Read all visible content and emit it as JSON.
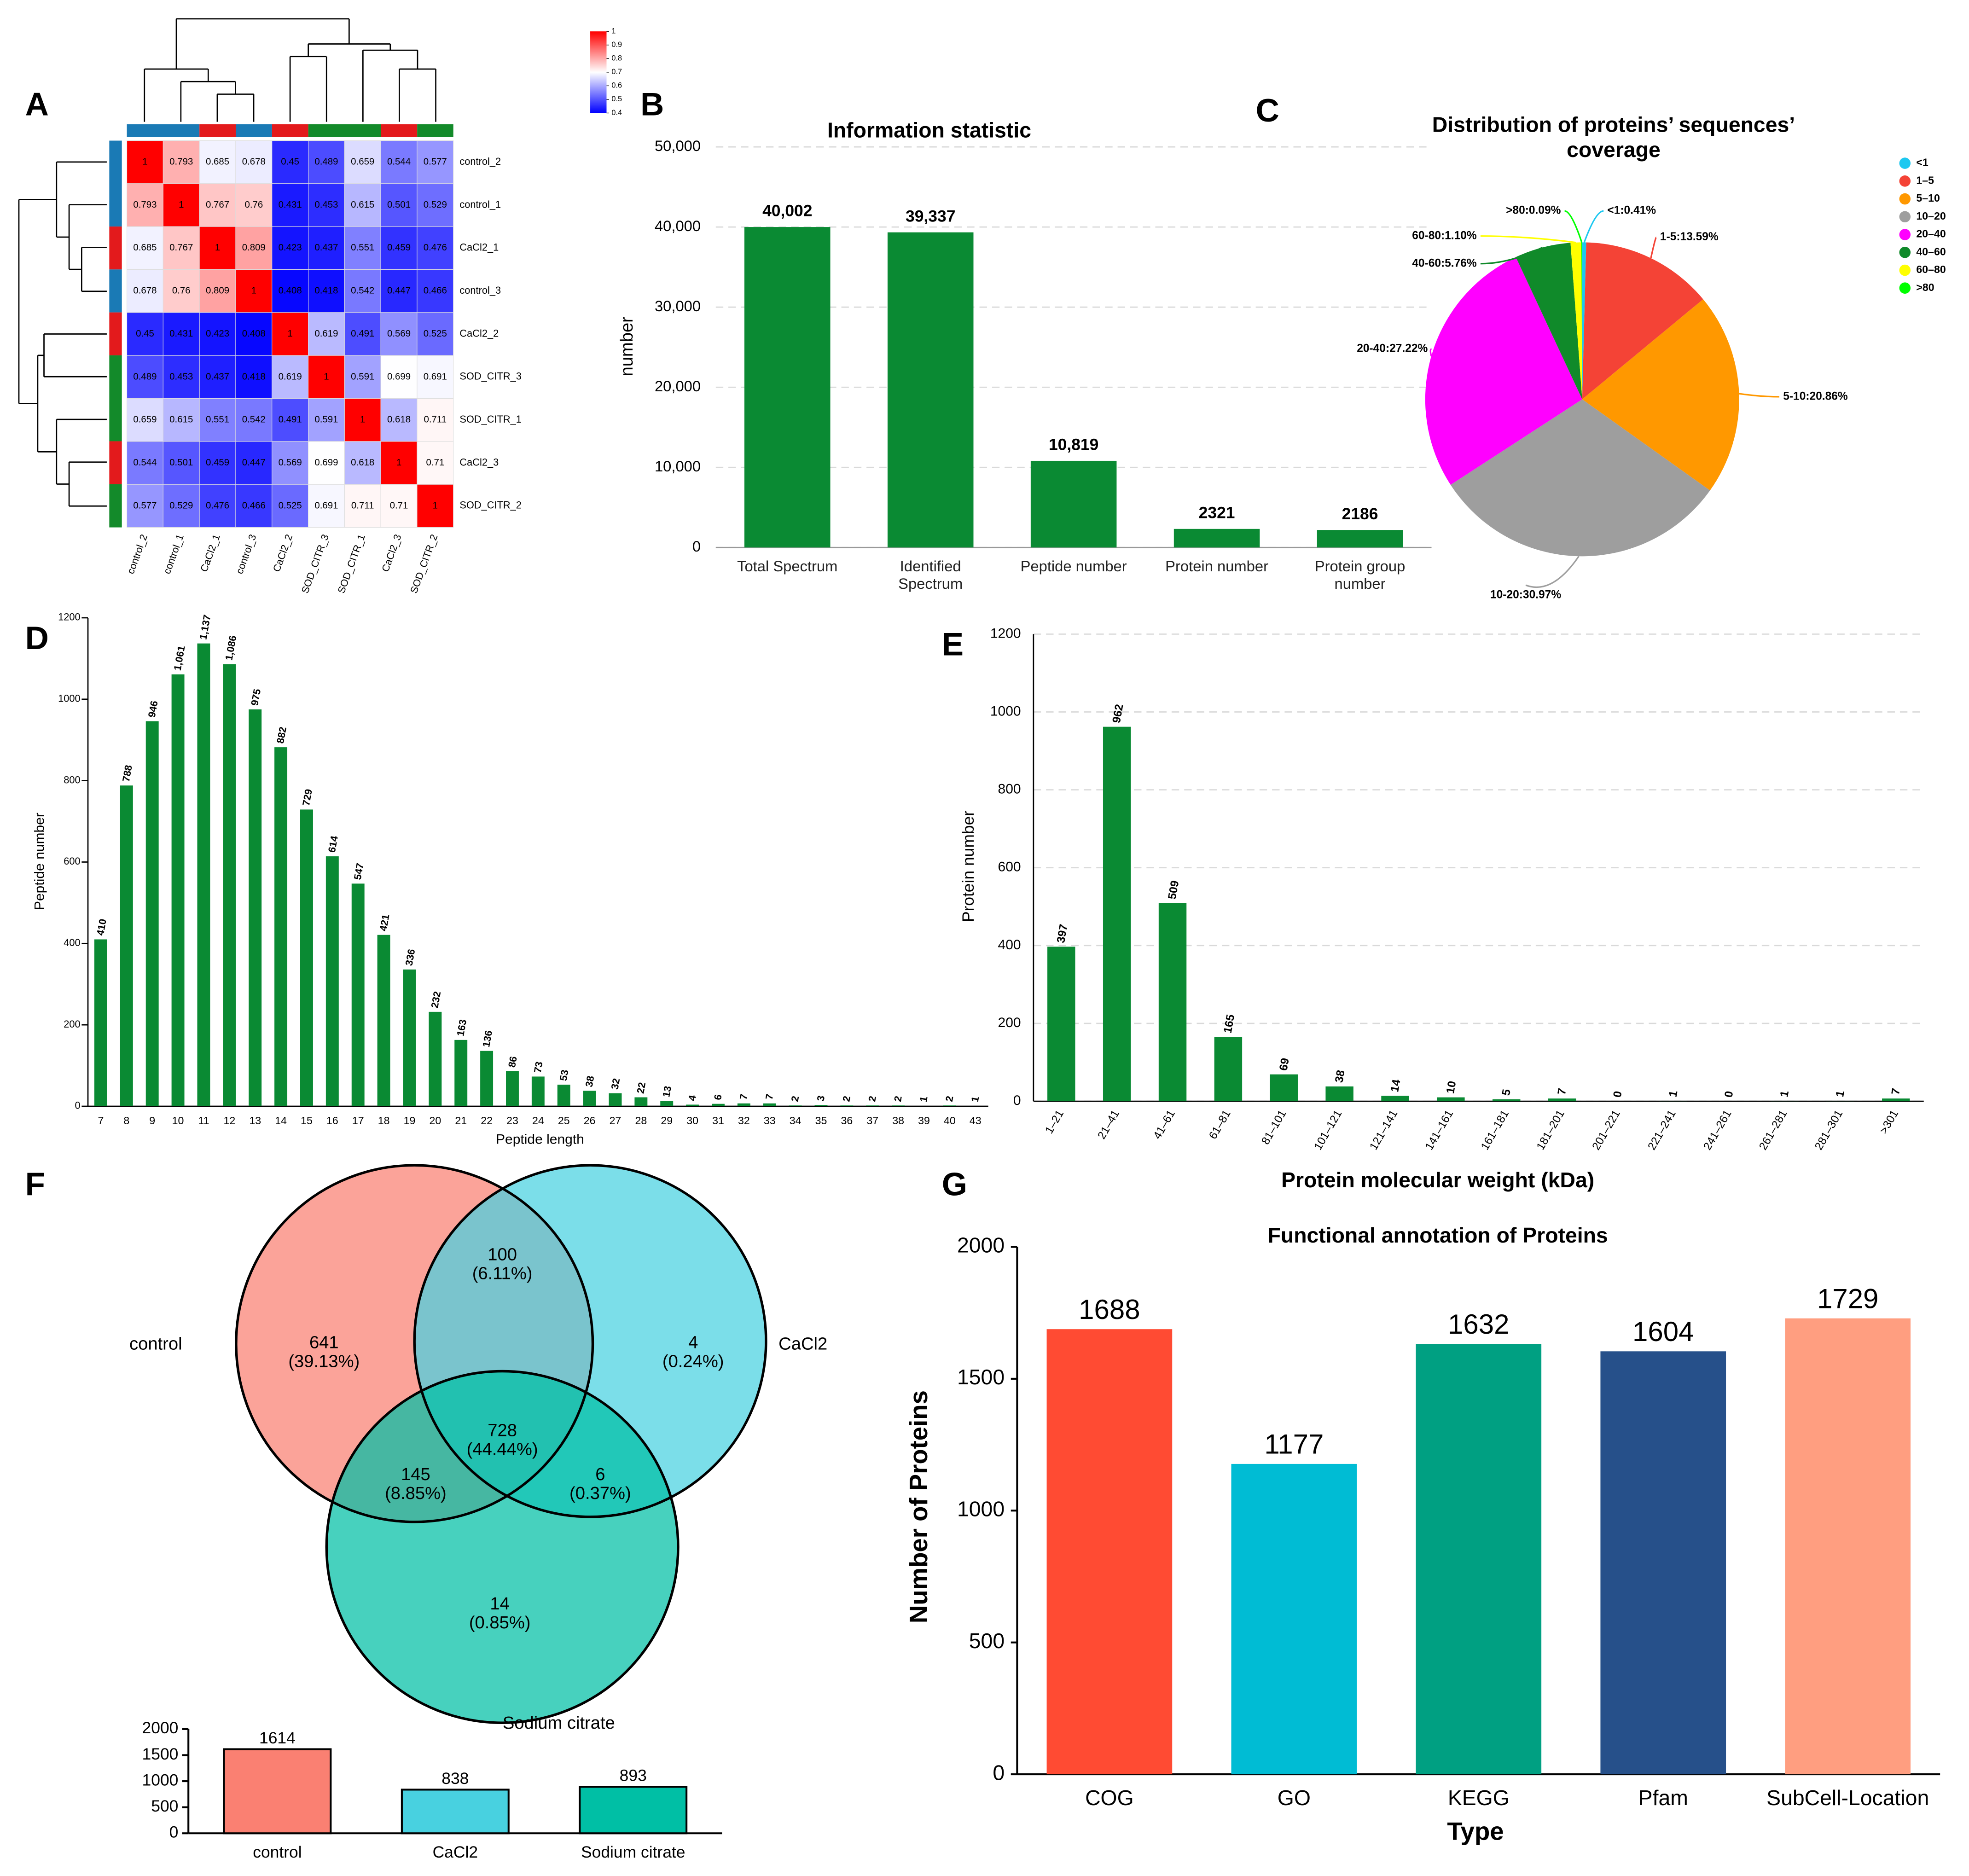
{
  "chart_data": [
    {
      "type": "heatmap",
      "panel": "A",
      "row_labels": [
        "control_2",
        "control_1",
        "CaCl2_1",
        "control_3",
        "CaCl2_2",
        "SOD_CITR_3",
        "SOD_CITR_1",
        "CaCl2_3",
        "SOD_CITR_2"
      ],
      "column_labels": [
        "control_2",
        "control_1",
        "CaCl2_1",
        "control_3",
        "CaCl2_2",
        "SOD_CITR_3",
        "SOD_CITR_1",
        "CaCl2_3",
        "SOD_CITR_2"
      ],
      "matrix": [
        [
          1,
          0.793,
          0.685,
          0.678,
          0.45,
          0.489,
          0.659,
          0.544,
          0.577
        ],
        [
          0.793,
          1,
          0.767,
          0.76,
          0.431,
          0.453,
          0.615,
          0.501,
          0.529
        ],
        [
          0.685,
          0.767,
          1,
          0.809,
          0.423,
          0.437,
          0.551,
          0.459,
          0.476
        ],
        [
          0.678,
          0.76,
          0.809,
          1,
          0.408,
          0.418,
          0.542,
          0.447,
          0.466
        ],
        [
          0.45,
          0.431,
          0.423,
          0.408,
          1,
          0.619,
          0.491,
          0.569,
          0.525
        ],
        [
          0.489,
          0.453,
          0.437,
          0.418,
          0.619,
          1,
          0.591,
          0.699,
          0.691
        ],
        [
          0.659,
          0.615,
          0.551,
          0.542,
          0.491,
          0.591,
          1,
          0.618,
          0.711
        ],
        [
          0.544,
          0.501,
          0.459,
          0.447,
          0.569,
          0.699,
          0.618,
          1,
          0.71
        ],
        [
          0.577,
          0.529,
          0.476,
          0.466,
          0.525,
          0.691,
          0.711,
          0.71,
          1
        ]
      ],
      "zlim": [
        0.4,
        1
      ],
      "zticks": [
        1,
        0.9,
        0.8,
        0.7,
        0.6,
        0.5,
        0.4
      ],
      "colors": [
        "#0000ff",
        "#ffffff",
        "#ff0000"
      ]
    },
    {
      "type": "bar",
      "panel": "B",
      "title": "Information statistic",
      "ylabel": "number",
      "categories": [
        "Total Spectrum",
        "Identified Spectrum",
        "Peptide number",
        "Protein number",
        "Protein group number"
      ],
      "values": [
        40002,
        39337,
        10819,
        2321,
        2186
      ],
      "value_labels": [
        "40,002",
        "39,337",
        "10,819",
        "2321",
        "2186"
      ],
      "color": "#0a8a33",
      "ylim": [
        0,
        50000
      ],
      "yticks": [
        0,
        {
          "value": 10000,
          "label": "10,000"
        },
        {
          "value": 20000,
          "label": "20,000"
        },
        {
          "value": 30000,
          "label": "30,000"
        },
        {
          "value": 40000,
          "label": "40,000"
        },
        {
          "value": 50000,
          "label": "50,000"
        }
      ],
      "grid": true
    },
    {
      "type": "pie",
      "panel": "C",
      "title": "Distribution of proteins’ sequences’ coverage",
      "categories": [
        "<1",
        "1–5",
        "5–10",
        "10–20",
        "20–40",
        "40–60",
        "60–80",
        ">80"
      ],
      "values": [
        0.41,
        13.59,
        20.86,
        30.97,
        27.22,
        5.76,
        1.1,
        0.09
      ],
      "value_labels": [
        "<1:0.41%",
        "1-5:13.59%",
        "5-10:20.86%",
        "10-20:30.97%",
        "20-40:27.22%",
        "40-60:5.76%",
        "60-80:1.10%",
        ">80:0.09%"
      ],
      "colors": [
        "#1ec8f0",
        "#f44336",
        "#ff9800",
        "#9e9e9e",
        "#ff00ff",
        "#108a2a",
        "#ffff00",
        "#00ff00"
      ]
    },
    {
      "type": "bar",
      "panel": "D",
      "xlabel": "Peptide length",
      "ylabel": "Peptide number",
      "categories": [
        "7",
        "8",
        "9",
        "10",
        "11",
        "12",
        "13",
        "14",
        "15",
        "16",
        "17",
        "18",
        "19",
        "20",
        "21",
        "22",
        "23",
        "24",
        "25",
        "26",
        "27",
        "28",
        "29",
        "30",
        "31",
        "32",
        "33",
        "34",
        "35",
        "36",
        "37",
        "38",
        "39",
        "40",
        "43"
      ],
      "values": [
        410,
        788,
        946,
        1061,
        1137,
        1086,
        975,
        882,
        729,
        614,
        547,
        421,
        336,
        232,
        163,
        136,
        86,
        73,
        53,
        38,
        32,
        22,
        13,
        4,
        6,
        7,
        7,
        2,
        3,
        2,
        2,
        2,
        1,
        2,
        1
      ],
      "value_labels": [
        "410",
        "788",
        "946",
        "1,061",
        "1,137",
        "1,086",
        "975",
        "882",
        "729",
        "614",
        "547",
        "421",
        "336",
        "232",
        "163",
        "136",
        "86",
        "73",
        "53",
        "38",
        "32",
        "22",
        "13",
        "4",
        "6",
        "7",
        "7",
        "2",
        "3",
        "2",
        "2",
        "2",
        "1",
        "2",
        "1"
      ],
      "color": "#0a8a33",
      "ylim": [
        0,
        1200
      ],
      "yticks": [
        0,
        200,
        400,
        600,
        800,
        1000,
        1200
      ],
      "grid": false
    },
    {
      "type": "bar",
      "panel": "E",
      "xlabel": "Protein molecular weight (kDa)",
      "ylabel": "Protein number",
      "categories": [
        "1–21",
        "21–41",
        "41–61",
        "61–81",
        "81–101",
        "101–121",
        "121–141",
        "141–161",
        "161–181",
        "181–201",
        "201–221",
        "221–241",
        "241–261",
        "261–281",
        "281–301",
        ">301"
      ],
      "values": [
        397,
        962,
        509,
        165,
        69,
        38,
        14,
        10,
        5,
        7,
        0,
        1,
        0,
        1,
        1,
        7
      ],
      "color": "#0a8a33",
      "ylim": [
        0,
        1200
      ],
      "yticks": [
        0,
        200,
        400,
        600,
        800,
        1000,
        1200
      ],
      "grid": true
    },
    {
      "type": "venn",
      "panel": "F",
      "sets": [
        {
          "name": "control",
          "color": "#fa8072"
        },
        {
          "name": "CaCl2",
          "color": "#48d1e0"
        },
        {
          "name": "Sodium citrate",
          "color": "#00bfa5"
        }
      ],
      "regions": [
        {
          "count": 641,
          "label": "(39.13%)"
        },
        {
          "count": 100,
          "label": "(6.11%)"
        },
        {
          "count": 4,
          "label": "(0.24%)"
        },
        {
          "count": 728,
          "label": "(44.44%)"
        },
        {
          "count": 145,
          "label": "(8.85%)"
        },
        {
          "count": 6,
          "label": "(0.37%)"
        },
        {
          "count": 14,
          "label": "(0.85%)"
        }
      ]
    },
    {
      "type": "bar",
      "categories": [
        "control",
        "CaCl2",
        "Sodium citrate"
      ],
      "values": [
        1614,
        838,
        893
      ],
      "colors": [
        "#fa8072",
        "#48d1e0",
        "#00bfa5"
      ],
      "ylim": [
        0,
        2000
      ],
      "yticks": [
        0,
        500,
        1000,
        1500,
        2000
      ],
      "grid": false
    },
    {
      "type": "bar",
      "panel": "G",
      "title": "Functional annotation of Proteins",
      "xlabel": "Type",
      "ylabel": "Number of Proteins",
      "categories": [
        "COG",
        "GO",
        "KEGG",
        "Pfam",
        "SubCell-Location"
      ],
      "values": [
        1688,
        1177,
        1632,
        1604,
        1729
      ],
      "colors": [
        "#ff4b33",
        "#00bcd4",
        "#00a082",
        "#26508a",
        "#ff9e80"
      ],
      "ylim": [
        0,
        2000
      ],
      "yticks": [
        0,
        500,
        1000,
        1500,
        2000
      ],
      "grid": false
    }
  ]
}
